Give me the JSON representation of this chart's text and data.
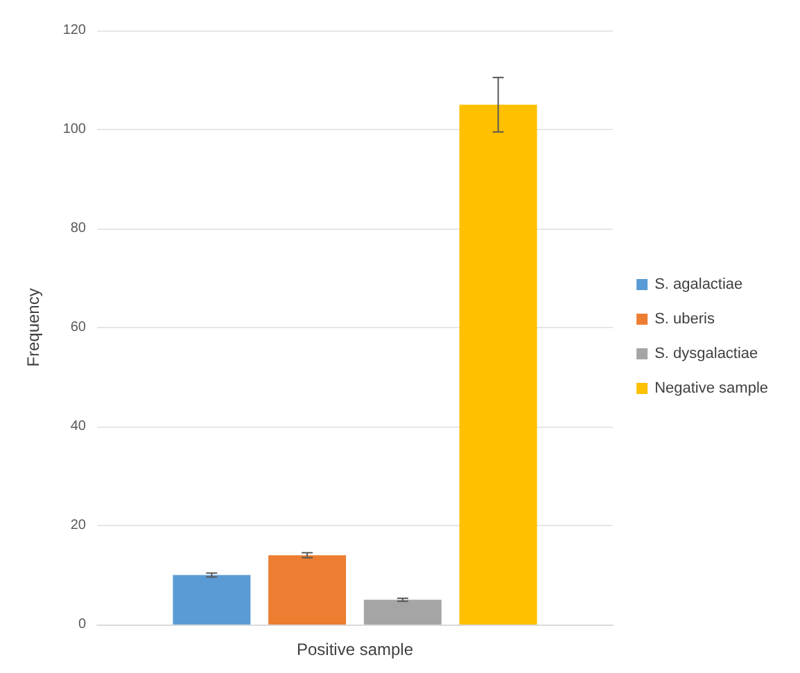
{
  "chart_data": {
    "type": "bar",
    "ylabel": "Frequency",
    "categories": [
      "Positive sample"
    ],
    "series": [
      {
        "name": "S. agalactiae",
        "color": "#5b9bd5",
        "values": [
          10
        ],
        "errors": [
          0.4
        ]
      },
      {
        "name": "S. uberis",
        "color": "#ed7d31",
        "values": [
          14
        ],
        "errors": [
          0.5
        ]
      },
      {
        "name": "S. dysgalactiae",
        "color": "#a5a5a5",
        "values": [
          5
        ],
        "errors": [
          0.3
        ]
      },
      {
        "name": "Negative sample",
        "color": "#ffc000",
        "values": [
          105
        ],
        "errors": [
          5.5
        ]
      }
    ],
    "ylim": [
      0,
      120
    ],
    "yticks": [
      0,
      20,
      40,
      60,
      80,
      100,
      120
    ],
    "grid": "y",
    "legend": "right"
  }
}
